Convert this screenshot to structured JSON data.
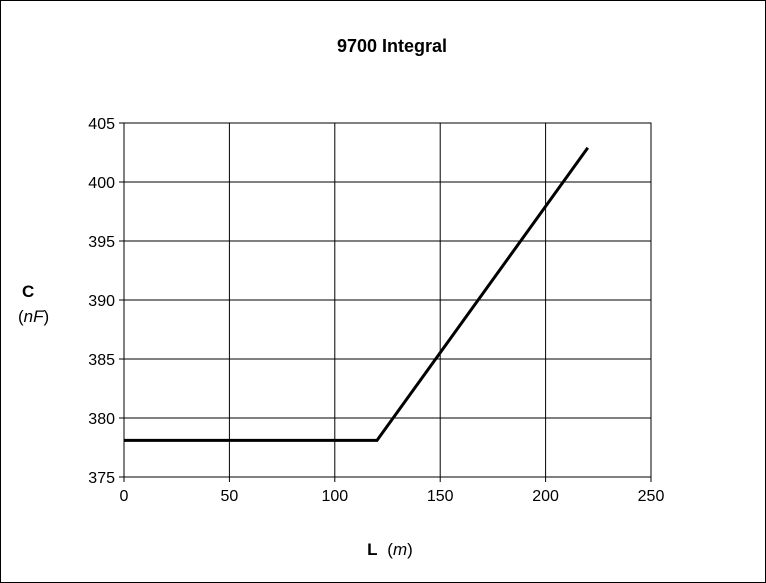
{
  "chart_data": {
    "type": "line",
    "title": "9700 Integral",
    "xlabel": {
      "main": "L",
      "unit_open": "(",
      "unit": "m",
      "unit_close": ")"
    },
    "ylabel": {
      "main": "C",
      "unit_open": "(",
      "unit": "nF",
      "unit_close": ")"
    },
    "xlim": [
      0,
      250
    ],
    "ylim": [
      375,
      405
    ],
    "xticks": [
      0,
      50,
      100,
      150,
      200,
      250
    ],
    "yticks": [
      375,
      380,
      385,
      390,
      395,
      400,
      405
    ],
    "grid": true,
    "series": [
      {
        "color": "#000000",
        "points": [
          [
            0,
            378.1
          ],
          [
            120,
            378.1
          ],
          [
            220,
            402.9
          ]
        ]
      }
    ]
  }
}
